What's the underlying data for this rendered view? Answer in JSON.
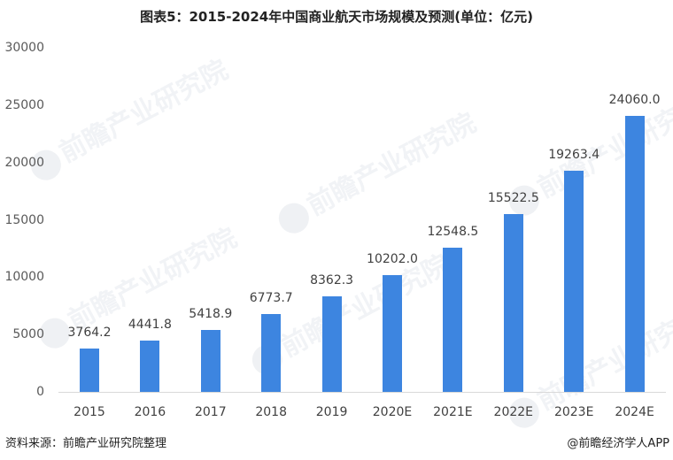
{
  "title": "图表5：2015-2024年中国商业航天市场规模及预测(单位：亿元)",
  "chart_data": {
    "type": "bar",
    "title": "图表5：2015-2024年中国商业航天市场规模及预测(单位：亿元)",
    "xlabel": "",
    "ylabel": "",
    "unit": "亿元",
    "categories": [
      "2015",
      "2016",
      "2017",
      "2018",
      "2019",
      "2020E",
      "2021E",
      "2022E",
      "2023E",
      "2024E"
    ],
    "values": [
      3764.2,
      4441.8,
      5418.9,
      6773.7,
      8362.3,
      10202.0,
      12548.5,
      15522.5,
      19263.4,
      24060.0
    ],
    "value_labels": [
      "3764.2",
      "4441.8",
      "5418.9",
      "6773.7",
      "8362.3",
      "10202.0",
      "12548.5",
      "15522.5",
      "19263.4",
      "24060.0"
    ],
    "yticks": [
      "0",
      "5000",
      "10000",
      "15000",
      "20000",
      "25000",
      "30000"
    ],
    "ylim": [
      0,
      30000
    ],
    "grid": false,
    "legend": null,
    "bar_color": "#3d85e0"
  },
  "watermark": "前瞻产业研究院",
  "footer": {
    "source": "资料来源：前瞻产业研究院整理",
    "credit": "@前瞻经济学人APP"
  }
}
